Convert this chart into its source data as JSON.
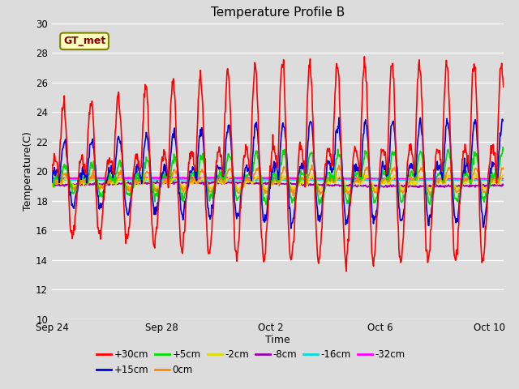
{
  "title": "Temperature Profile B",
  "xlabel": "Time",
  "ylabel": "Temperature(C)",
  "ylim": [
    10,
    30
  ],
  "yticks": [
    10,
    12,
    14,
    16,
    18,
    20,
    22,
    24,
    26,
    28,
    30
  ],
  "background_color": "#dcdcdc",
  "plot_bg_color": "#dcdcdc",
  "gt_met_label": "GT_met",
  "legend_entries": [
    "+30cm",
    "+15cm",
    "+5cm",
    "0cm",
    "-2cm",
    "-8cm",
    "-16cm",
    "-32cm"
  ],
  "legend_colors": [
    "#ff0000",
    "#0000dd",
    "#00dd00",
    "#ff8800",
    "#dddd00",
    "#9900aa",
    "#00dddd",
    "#ff00ff"
  ],
  "line_widths": [
    1.2,
    1.2,
    1.2,
    1.2,
    1.2,
    1.2,
    1.2,
    1.8
  ],
  "xtick_labels": [
    "Sep 24",
    "Sep 28",
    "Oct 2",
    "Oct 6",
    "Oct 10"
  ],
  "xtick_days": [
    0,
    4,
    8,
    12,
    16
  ],
  "base_temp": 19.3,
  "num_days": 16.5,
  "n_points": 800
}
